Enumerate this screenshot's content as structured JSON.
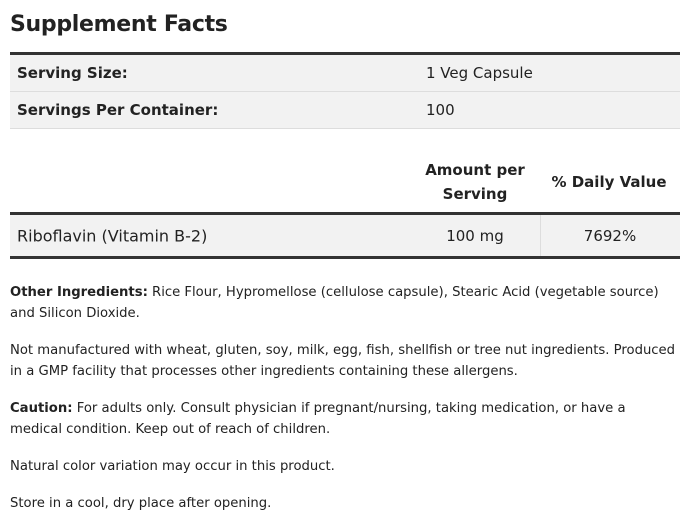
{
  "title": "Supplement Facts",
  "serving": [
    {
      "label": "Serving Size:",
      "value": "1 Veg Capsule"
    },
    {
      "label": "Servings Per Container:",
      "value": "100"
    }
  ],
  "columns": {
    "amount": "Amount per Serving",
    "dv": "% Daily Value"
  },
  "nutrients": [
    {
      "name": "Riboflavin (Vitamin B-2)",
      "amount": "100 mg",
      "dv": "7692%"
    }
  ],
  "notes": {
    "other_label": "Other Ingredients:",
    "other_text": " Rice Flour, Hypromellose (cellulose capsule), Stearic Acid (vegetable source) and Silicon Dioxide.",
    "allergen": "Not manufactured with wheat, gluten, soy, milk, egg, fish, shellfish or tree nut ingredients. Produced in a GMP facility that processes other ingredients containing these allergens.",
    "caution_label": "Caution:",
    "caution_text": " For adults only. Consult physician if pregnant/nursing, taking medication, or have a medical condition. Keep out of reach of children.",
    "color": "Natural color variation may occur in this product.",
    "storage": "Store in a cool, dry place after opening."
  }
}
